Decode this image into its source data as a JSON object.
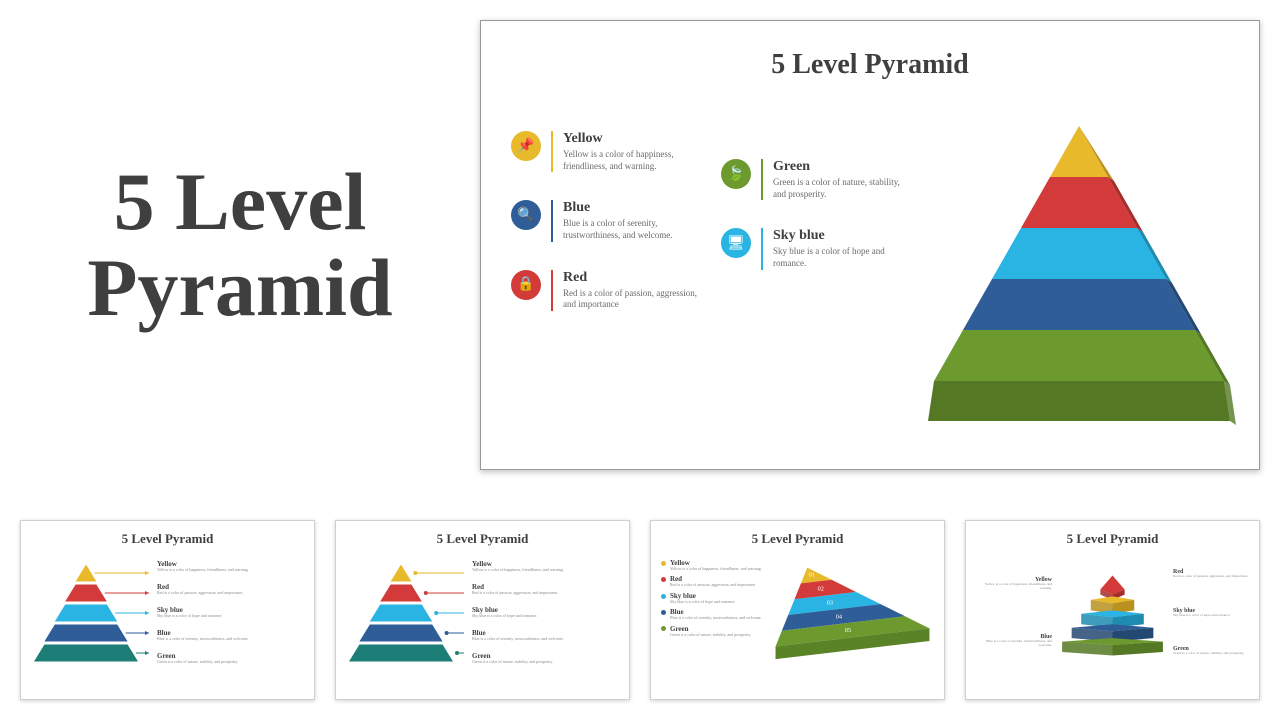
{
  "main_title": "5 Level Pyramid",
  "slide_title": "5 Level Pyramid",
  "colors": {
    "yellow": "#e8b92a",
    "red": "#d33b3a",
    "skyblue": "#29b4e3",
    "blue": "#2e5d97",
    "green": "#6d9a2e",
    "green_dark": "#5a8226",
    "teal": "#1d7e78",
    "title_text": "#3f3f3f",
    "desc_text": "#6a6a6a"
  },
  "legend": {
    "col1": [
      {
        "key": "yellow",
        "title": "Yellow",
        "desc": "Yellow is a color of happiness, friendliness, and warning.",
        "icon": "📌"
      },
      {
        "key": "blue",
        "title": "Blue",
        "desc": "Blue is a color of serenity, trustworthiness, and welcome.",
        "icon": "🔍"
      },
      {
        "key": "red",
        "title": "Red",
        "desc": "Red is a color of passion, aggression, and importance",
        "icon": "🔒"
      }
    ],
    "col2": [
      {
        "key": "green",
        "title": "Green",
        "desc": "Green is a color of nature, stability, and prosperity.",
        "icon": "🍃"
      },
      {
        "key": "skyblue",
        "title": "Sky blue",
        "desc": "Sky blue is a color of hope and romance.",
        "icon": "🖥"
      }
    ]
  },
  "pyramid3d": {
    "levels": [
      {
        "color": "#e8b92a",
        "shade": "#b8911e"
      },
      {
        "color": "#d33b3a",
        "shade": "#a52d2c"
      },
      {
        "color": "#29b4e3",
        "shade": "#1e8bb0"
      },
      {
        "color": "#2e5d97",
        "shade": "#234872"
      },
      {
        "color": "#6d9a2e",
        "shade": "#547823"
      }
    ]
  },
  "thumb12": {
    "title": "5 Level Pyramid",
    "levels": [
      {
        "title": "Yellow",
        "desc": "Yellow is a color of happiness, friendliness, and warning.",
        "color": "#e8b92a"
      },
      {
        "title": "Red",
        "desc": "Red is a color of passion, aggression, and importance.",
        "color": "#d33b3a"
      },
      {
        "title": "Sky blue",
        "desc": "Sky blue is a color of hope and romance.",
        "color": "#29b4e3"
      },
      {
        "title": "Blue",
        "desc": "Blue is a color of serenity, trustworthiness, and welcome.",
        "color": "#2e5d97"
      },
      {
        "title": "Green",
        "desc": "Green is a color of nature, stability, and prosperity.",
        "color": "#1d7e78"
      }
    ]
  },
  "thumb3": {
    "title": "5 Level Pyramid",
    "labels": [
      "01",
      "02",
      "03",
      "04",
      "05"
    ],
    "legend": [
      {
        "title": "Yellow",
        "desc": "Yellow is a color of happiness, friendliness, and warning.",
        "color": "#e8b92a"
      },
      {
        "title": "Red",
        "desc": "Red is a color of passion, aggression, and importance",
        "color": "#d33b3a"
      },
      {
        "title": "Sky blue",
        "desc": "Sky blue is a color of hope and romance.",
        "color": "#29b4e3"
      },
      {
        "title": "Blue",
        "desc": "Blue is a color of serenity, trustworthiness, and welcome.",
        "color": "#2e5d97"
      },
      {
        "title": "Green",
        "desc": "Green is a color of nature, stability, and prosperity.",
        "color": "#6d9a2e"
      }
    ]
  },
  "thumb4": {
    "title": "5 Level Pyramid",
    "left": [
      {
        "title": "Yellow",
        "desc": "Yellow is a color of happiness, friendliness, and warning.",
        "color": "#e8b92a"
      },
      {
        "title": "Blue",
        "desc": "Blue is a color of serenity, trustworthiness, and welcome.",
        "color": "#2e5d97"
      }
    ],
    "right": [
      {
        "title": "Red",
        "desc": "Red is a color of passion, aggression, and importance",
        "color": "#d33b3a"
      },
      {
        "title": "Sky blue",
        "desc": "Sky blue is a color of hope and romance.",
        "color": "#29b4e3"
      },
      {
        "title": "Green",
        "desc": "Green is a color of nature, stability, and prosperity.",
        "color": "#6d9a2e"
      }
    ]
  }
}
